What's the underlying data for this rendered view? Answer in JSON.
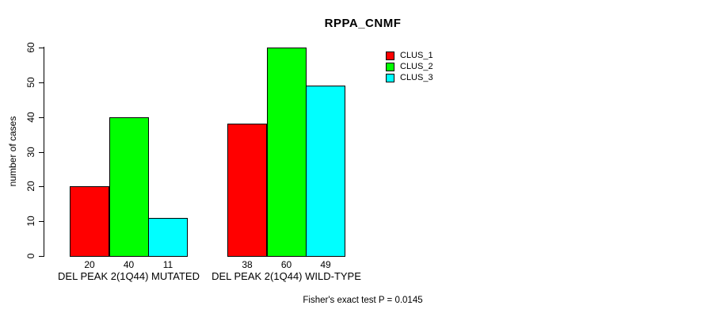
{
  "title": "RPPA_CNMF",
  "footer": "Fisher's exact test P = 0.0145",
  "y_axis": {
    "label": "number of cases"
  },
  "legend": {
    "items": [
      {
        "label": "CLUS_1",
        "color": "#FF0000"
      },
      {
        "label": "CLUS_2",
        "color": "#00FF00"
      },
      {
        "label": "CLUS_3",
        "color": "#00FFFF"
      }
    ]
  },
  "chart_data": {
    "type": "bar",
    "grouped": true,
    "categories": [
      "DEL PEAK 2(1Q44) MUTATED",
      "DEL PEAK 2(1Q44) WILD-TYPE"
    ],
    "series": [
      {
        "name": "CLUS_1",
        "color": "#FF0000",
        "values": [
          20,
          38
        ]
      },
      {
        "name": "CLUS_2",
        "color": "#00FF00",
        "values": [
          40,
          60
        ]
      },
      {
        "name": "CLUS_3",
        "color": "#00FFFF",
        "values": [
          11,
          49
        ]
      }
    ],
    "title": "RPPA_CNMF",
    "xlabel": "",
    "ylabel": "number of cases",
    "ylim": [
      0,
      60
    ],
    "yticks": [
      0,
      10,
      20,
      30,
      40,
      50,
      60
    ],
    "grid": false,
    "legend_position": "top-right",
    "bar_value_labels": true,
    "bar_outline_color": "#000000",
    "annotation": "Fisher's exact test P = 0.0145"
  }
}
